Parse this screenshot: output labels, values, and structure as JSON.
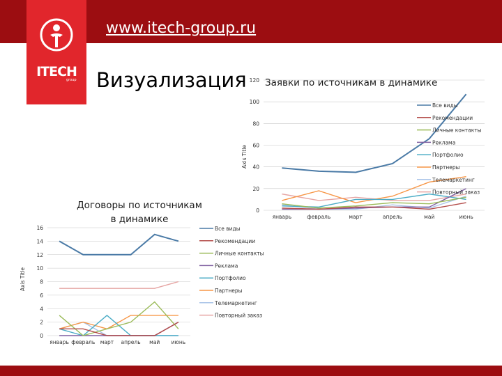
{
  "header": {
    "site_url": "www.itech-group.ru",
    "logo_text": "ITECH",
    "logo_sub": "group"
  },
  "page": {
    "title": "Визуализация"
  },
  "colors": {
    "bar": "#9c0d11",
    "logo": "#e1262c",
    "series": [
      "#4a7aa6",
      "#b34c4a",
      "#9bbb59",
      "#7f5fa0",
      "#4bacc6",
      "#f79646",
      "#a9c4e8",
      "#e6a5a3"
    ]
  },
  "chart_data": [
    {
      "type": "line",
      "title": "Заявки по источникам в динамике",
      "ylabel": "Axis Title",
      "xlabel": "",
      "ylim": [
        0,
        120
      ],
      "yticks": [
        "0",
        "20",
        "40",
        "60",
        "80",
        "100",
        "120"
      ],
      "categories": [
        "январь",
        "февраль",
        "март",
        "апрель",
        "май",
        "июнь"
      ],
      "legend_position": "right",
      "grid": true,
      "series": [
        {
          "name": "Все виды",
          "values": [
            39,
            36,
            35,
            43,
            66,
            107
          ]
        },
        {
          "name": "Рекомендации",
          "values": [
            2,
            1,
            3,
            3,
            1,
            7
          ]
        },
        {
          "name": "Личные контакты",
          "values": [
            6,
            2,
            4,
            7,
            6,
            12
          ]
        },
        {
          "name": "Реклама",
          "values": [
            1,
            1,
            2,
            3,
            3,
            20
          ]
        },
        {
          "name": "Портфолио",
          "values": [
            4,
            3,
            10,
            10,
            15,
            10
          ]
        },
        {
          "name": "Партнеры",
          "values": [
            9,
            18,
            7,
            13,
            26,
            31
          ]
        },
        {
          "name": "Телемаркетинг",
          "values": [
            5,
            1,
            1,
            5,
            2,
            13
          ]
        },
        {
          "name": "Повторный заказ",
          "values": [
            15,
            9,
            12,
            9,
            9,
            15
          ]
        }
      ]
    },
    {
      "type": "line",
      "title": "Договоры по источникам в динамике",
      "ylabel": "Axis Title",
      "xlabel": "",
      "ylim": [
        0,
        16
      ],
      "yticks": [
        "0",
        "2",
        "4",
        "6",
        "8",
        "10",
        "12",
        "14",
        "16"
      ],
      "categories": [
        "январь",
        "февраль",
        "март",
        "апрель",
        "май",
        "июнь"
      ],
      "legend_position": "right",
      "grid": true,
      "series": [
        {
          "name": "Все виды",
          "values": [
            14,
            12,
            12,
            12,
            15,
            14
          ]
        },
        {
          "name": "Рекомендации",
          "values": [
            1,
            1,
            0,
            0,
            0,
            2
          ]
        },
        {
          "name": "Личные контакты",
          "values": [
            3,
            0,
            1,
            2,
            5,
            1
          ]
        },
        {
          "name": "Реклама",
          "values": [
            0,
            0,
            0,
            0,
            0,
            2
          ]
        },
        {
          "name": "Портфолио",
          "values": [
            1,
            0,
            3,
            0,
            0,
            0
          ]
        },
        {
          "name": "Партнеры",
          "values": [
            1,
            2,
            1,
            3,
            3,
            3
          ]
        },
        {
          "name": "Телемаркетинг",
          "values": [
            1,
            2,
            0,
            0,
            0,
            0
          ]
        },
        {
          "name": "Повторный заказ",
          "values": [
            7,
            7,
            7,
            7,
            7,
            8
          ]
        }
      ]
    }
  ]
}
